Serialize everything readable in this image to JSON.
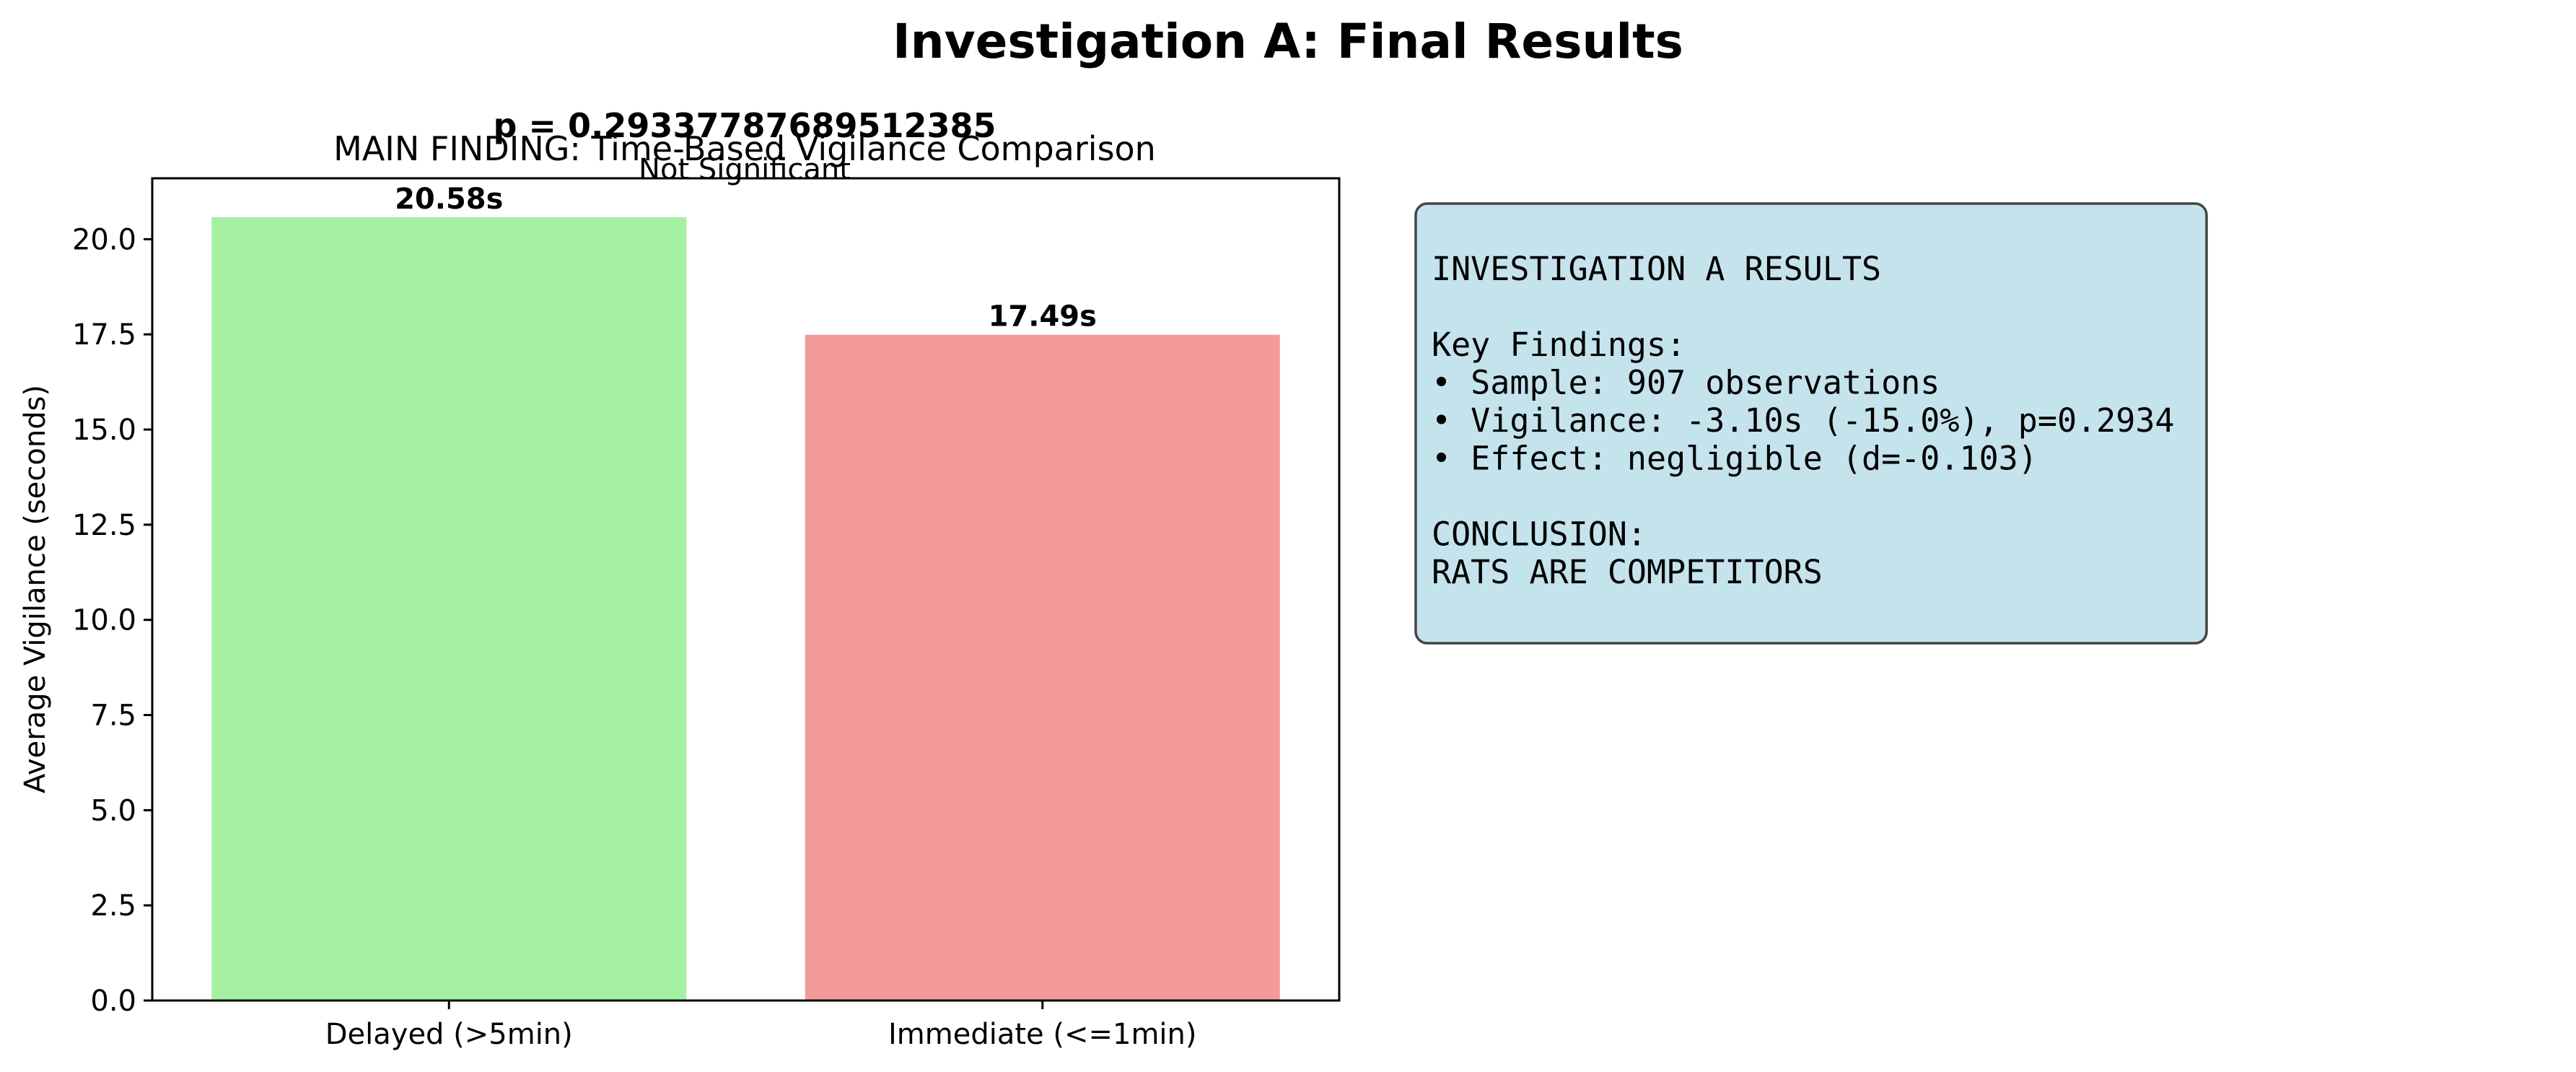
{
  "figure": {
    "title": "Investigation A: Final Results"
  },
  "chart_data": {
    "type": "bar",
    "title": "MAIN FINDING: Time-Based Vigilance Comparison",
    "categories": [
      "Delayed (>5min)",
      "Immediate (<=1min)"
    ],
    "values": [
      20.58,
      17.49
    ],
    "value_labels": [
      "20.58s",
      "17.49s"
    ],
    "colors": [
      "#a6f0a4",
      "#f29a9a"
    ],
    "xlabel": "",
    "ylabel": "Average Vigilance (seconds)",
    "ylim": [
      0,
      21.6
    ],
    "yticks": [
      "0.0",
      "2.5",
      "5.0",
      "7.5",
      "10.0",
      "12.5",
      "15.0",
      "17.5",
      "20.0"
    ],
    "grid": false,
    "annotation": {
      "pvalue": "p = 0.29337787689512385",
      "significance": "Not Significant"
    }
  },
  "results_panel": {
    "background": "#c5e3ec",
    "lines": [
      "INVESTIGATION A RESULTS",
      "",
      "Key Findings:",
      "• Sample: 907 observations",
      "• Vigilance: -3.10s (-15.0%), p=0.2934",
      "• Effect: negligible (d=-0.103)",
      "",
      "CONCLUSION:",
      "RATS ARE COMPETITORS"
    ]
  }
}
